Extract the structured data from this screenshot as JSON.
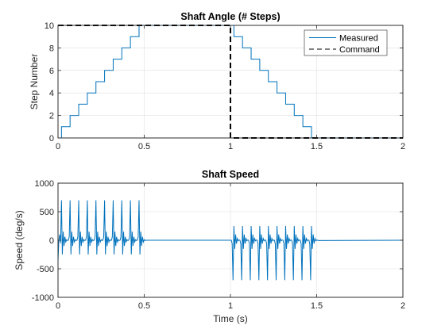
{
  "colors": {
    "measured": "#0072bd",
    "command": "#000000",
    "grid": "#dfdfdf",
    "axes": "#262626"
  },
  "chart_data": [
    {
      "type": "line",
      "title": "Shaft Angle (# Steps)",
      "xlabel": "",
      "ylabel": "Step Number",
      "xlim": [
        0,
        2
      ],
      "ylim": [
        0,
        10
      ],
      "xticks": [
        0,
        0.5,
        1,
        1.5,
        2
      ],
      "xtick_labels": [
        "0",
        "0.5",
        "1",
        "1.5",
        "2"
      ],
      "yticks": [
        0,
        2,
        4,
        6,
        8,
        10
      ],
      "ytick_labels": [
        "0",
        "2",
        "4",
        "6",
        "8",
        "10"
      ],
      "grid": true,
      "legend": {
        "placement": "top-right",
        "entries": [
          "Measured",
          "Command"
        ]
      },
      "series": [
        {
          "name": "Measured",
          "style": "solid",
          "x": [
            0,
            0.02,
            0.02,
            0.07,
            0.07,
            0.12,
            0.12,
            0.17,
            0.17,
            0.22,
            0.22,
            0.27,
            0.27,
            0.32,
            0.32,
            0.37,
            0.37,
            0.42,
            0.42,
            0.47,
            0.47,
            1.02,
            1.02,
            1.07,
            1.07,
            1.12,
            1.12,
            1.17,
            1.17,
            1.22,
            1.22,
            1.27,
            1.27,
            1.32,
            1.32,
            1.37,
            1.37,
            1.42,
            1.42,
            1.47,
            1.47,
            2.0
          ],
          "y": [
            0,
            0,
            1,
            1,
            2,
            2,
            3,
            3,
            4,
            4,
            5,
            5,
            6,
            6,
            7,
            7,
            8,
            8,
            9,
            9,
            10,
            10,
            9,
            9,
            8,
            8,
            7,
            7,
            6,
            6,
            5,
            5,
            4,
            4,
            3,
            3,
            2,
            2,
            1,
            1,
            0,
            0
          ]
        },
        {
          "name": "Command",
          "style": "dashed",
          "x": [
            0,
            1,
            1,
            2
          ],
          "y": [
            10,
            10,
            0,
            0
          ]
        }
      ]
    },
    {
      "type": "line",
      "title": "Shaft Speed",
      "xlabel": "Time (s)",
      "ylabel": "Speed (deg/s)",
      "xlim": [
        0,
        2
      ],
      "ylim": [
        -1000,
        1000
      ],
      "xticks": [
        0,
        0.5,
        1,
        1.5,
        2
      ],
      "xtick_labels": [
        "0",
        "0.5",
        "1",
        "1.5",
        "2"
      ],
      "yticks": [
        -1000,
        -500,
        0,
        500,
        1000
      ],
      "ytick_labels": [
        "-1000",
        "-500",
        "0",
        "500",
        "1000"
      ],
      "grid": true,
      "series": [
        {
          "style": "solid",
          "x": [
            0,
            0.005,
            0.01,
            0.015,
            0.02,
            0.025,
            0.03,
            0.035,
            0.04,
            0.045,
            0.05,
            0.055,
            0.06,
            0.065,
            0.07,
            0.075,
            0.08,
            0.085,
            0.09,
            0.095,
            0.1,
            0.105,
            0.11,
            0.115,
            0.12,
            0.125,
            0.13,
            0.135,
            0.14,
            0.145,
            0.15,
            0.155,
            0.16,
            0.165,
            0.17,
            0.175,
            0.18,
            0.185,
            0.19,
            0.195,
            0.2,
            0.205,
            0.21,
            0.215,
            0.22,
            0.225,
            0.23,
            0.235,
            0.24,
            0.245,
            0.25,
            0.255,
            0.26,
            0.265,
            0.27,
            0.275,
            0.28,
            0.285,
            0.29,
            0.295,
            0.3,
            0.305,
            0.31,
            0.315,
            0.32,
            0.325,
            0.33,
            0.335,
            0.34,
            0.345,
            0.35,
            0.355,
            0.36,
            0.365,
            0.37,
            0.375,
            0.38,
            0.385,
            0.39,
            0.395,
            0.4,
            0.405,
            0.41,
            0.415,
            0.42,
            0.425,
            0.43,
            0.435,
            0.44,
            0.445,
            0.45,
            0.455,
            0.46,
            0.465,
            0.47,
            0.475,
            0.48,
            0.485,
            0.49,
            0.495,
            0.5,
            0.505,
            0.51,
            1.0,
            1.005,
            1.01,
            1.015,
            1.02,
            1.025,
            1.03,
            1.035,
            1.04,
            1.045,
            1.05,
            1.055,
            1.06,
            1.065,
            1.07,
            1.075,
            1.08,
            1.085,
            1.09,
            1.095,
            1.1,
            1.105,
            1.11,
            1.115,
            1.12,
            1.125,
            1.13,
            1.135,
            1.14,
            1.145,
            1.15,
            1.155,
            1.16,
            1.165,
            1.17,
            1.175,
            1.18,
            1.185,
            1.19,
            1.195,
            1.2,
            1.205,
            1.21,
            1.215,
            1.22,
            1.225,
            1.23,
            1.235,
            1.24,
            1.245,
            1.25,
            1.255,
            1.26,
            1.265,
            1.27,
            1.275,
            1.28,
            1.285,
            1.29,
            1.295,
            1.3,
            1.305,
            1.31,
            1.315,
            1.32,
            1.325,
            1.33,
            1.335,
            1.34,
            1.345,
            1.35,
            1.355,
            1.36,
            1.365,
            1.37,
            1.375,
            1.38,
            1.385,
            1.39,
            1.395,
            1.4,
            1.405,
            1.41,
            1.415,
            1.42,
            1.425,
            1.43,
            1.435,
            1.44,
            1.445,
            1.45,
            1.455,
            1.46,
            1.465,
            1.47,
            1.475,
            1.48,
            1.485,
            1.49,
            1.495,
            1.5,
            1.505,
            1.51,
            2.0
          ],
          "y": [
            -350,
            0,
            100,
            -50,
            700,
            -250,
            150,
            -100,
            60,
            -30,
            10,
            -5,
            0,
            60,
            700,
            -250,
            150,
            -100,
            60,
            -30,
            10,
            -5,
            0,
            60,
            700,
            -250,
            150,
            -100,
            60,
            -30,
            10,
            -5,
            0,
            60,
            700,
            -250,
            150,
            -100,
            60,
            -30,
            10,
            -5,
            0,
            60,
            700,
            -250,
            150,
            -100,
            60,
            -30,
            10,
            -5,
            0,
            60,
            700,
            -250,
            150,
            -100,
            60,
            -30,
            10,
            -5,
            0,
            60,
            700,
            -250,
            150,
            -100,
            60,
            -30,
            10,
            -5,
            0,
            60,
            700,
            -250,
            150,
            -100,
            60,
            -30,
            10,
            -5,
            0,
            60,
            700,
            -250,
            150,
            -100,
            60,
            -30,
            10,
            -5,
            0,
            60,
            700,
            -250,
            150,
            -100,
            60,
            -30,
            10,
            -5,
            0,
            0,
            0,
            -60,
            -700,
            250,
            -150,
            100,
            -60,
            30,
            -10,
            5,
            0,
            -60,
            -700,
            250,
            -150,
            100,
            -60,
            30,
            -10,
            5,
            0,
            -60,
            -700,
            250,
            -150,
            100,
            -60,
            30,
            -10,
            5,
            0,
            -60,
            -700,
            250,
            -150,
            100,
            -60,
            30,
            -10,
            5,
            0,
            -60,
            -700,
            250,
            -150,
            100,
            -60,
            30,
            -10,
            5,
            0,
            -60,
            -700,
            250,
            -150,
            100,
            -60,
            30,
            -10,
            5,
            0,
            -60,
            -700,
            250,
            -150,
            100,
            -60,
            30,
            -10,
            5,
            0,
            -60,
            -700,
            250,
            -150,
            100,
            -60,
            30,
            -10,
            5,
            0,
            -60,
            -700,
            250,
            -150,
            100,
            -60,
            30,
            -10,
            5,
            0,
            -60,
            -700,
            250,
            -150,
            100,
            -60,
            30,
            -10,
            5,
            0,
            -5,
            0
          ]
        }
      ]
    }
  ]
}
